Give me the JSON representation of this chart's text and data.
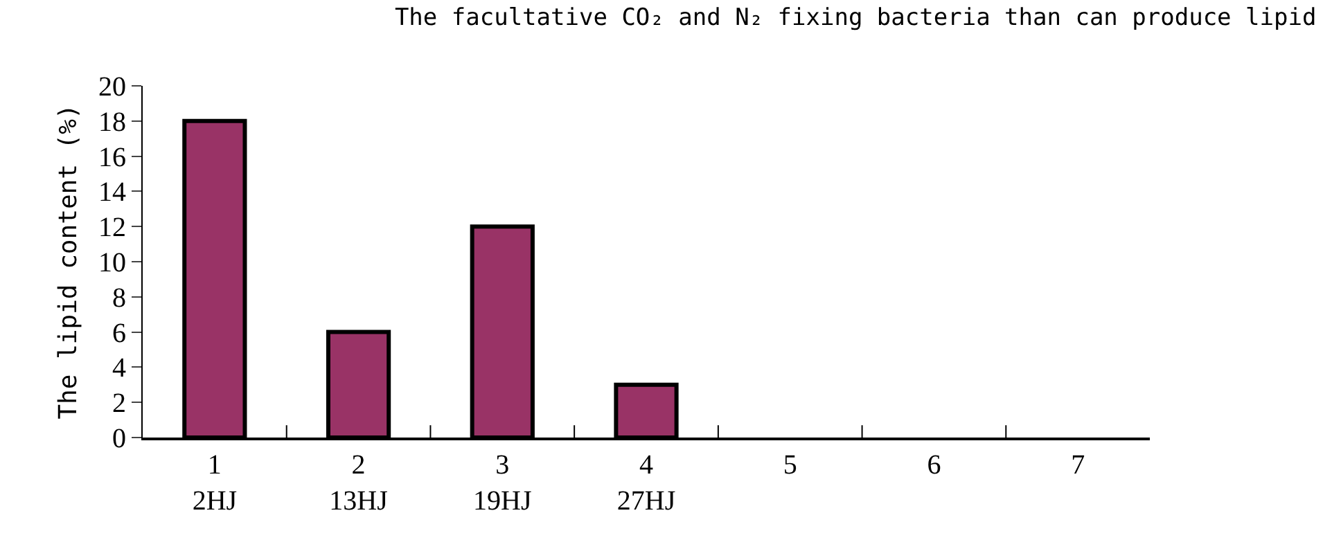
{
  "chart_data": {
    "type": "bar",
    "title": "The facultative CO₂ and N₂ fixing bacteria than can produce lipid",
    "ylabel": "The lipid content (%)",
    "categories": [
      "1\n2HJ",
      "2\n13HJ",
      "3\n19HJ",
      "4\n27HJ",
      "5",
      "6",
      "7"
    ],
    "values": [
      18,
      6,
      12,
      3,
      null,
      null,
      null
    ],
    "color": "#993366",
    "ylim": [
      0,
      20
    ],
    "yticks": [
      0,
      2,
      4,
      6,
      8,
      10,
      12,
      14,
      16,
      18,
      20
    ],
    "grid": false
  }
}
